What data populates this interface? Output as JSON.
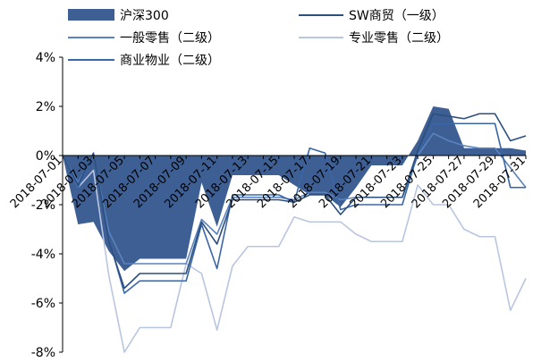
{
  "chart_data": {
    "type": "line",
    "title": "",
    "xlabel": "",
    "ylabel": "",
    "ylim": [
      -8,
      4
    ],
    "yticks": [
      4,
      2,
      0,
      -2,
      -4,
      -6,
      -8
    ],
    "ytick_labels": [
      "4%",
      "2%",
      "0%",
      "-2%",
      "-4%",
      "-6%",
      "-8%"
    ],
    "grid": false,
    "legend_position": "top",
    "x": [
      "2018-07-01",
      "2018-07-02",
      "2018-07-03",
      "2018-07-04",
      "2018-07-05",
      "2018-07-06",
      "2018-07-07",
      "2018-07-08",
      "2018-07-09",
      "2018-07-10",
      "2018-07-11",
      "2018-07-12",
      "2018-07-13",
      "2018-07-14",
      "2018-07-15",
      "2018-07-16",
      "2018-07-17",
      "2018-07-18",
      "2018-07-19",
      "2018-07-20",
      "2018-07-21",
      "2018-07-22",
      "2018-07-23",
      "2018-07-24",
      "2018-07-25",
      "2018-07-26",
      "2018-07-27",
      "2018-07-28",
      "2018-07-29",
      "2018-07-30",
      "2018-07-31"
    ],
    "xtick_labels": [
      "2018-07-01",
      "2018-07-03",
      "2018-07-05",
      "2018-07-07",
      "2018-07-09",
      "2018-07-11",
      "2018-07-13",
      "2018-07-15",
      "2018-07-17",
      "2018-07-19",
      "2018-07-21",
      "2018-07-23",
      "2018-07-25",
      "2018-07-27",
      "2018-07-29",
      "2018-07-31"
    ],
    "series": [
      {
        "name": "沪深300",
        "kind": "area",
        "color": "#3d5f94",
        "values": [
          0,
          -2.8,
          -2.7,
          -3.9,
          -4.7,
          -4.2,
          -4.2,
          -4.2,
          -4.2,
          -1.1,
          -2.9,
          -0.8,
          -0.8,
          -0.8,
          -0.8,
          -1.2,
          -1.6,
          -1.6,
          -2.1,
          -1.3,
          -0.4,
          -0.4,
          -0.4,
          0.6,
          2.0,
          1.9,
          0.3,
          0.3,
          0.3,
          0.3,
          0.2
        ]
      },
      {
        "name": "SW商贸（一级）",
        "kind": "line",
        "color": "#2b4f7e",
        "values": [
          0,
          -1.2,
          0.1,
          -3.5,
          -5.4,
          -4.8,
          -4.8,
          -4.8,
          -4.8,
          -2.7,
          -3.6,
          -1.8,
          -1.8,
          -1.8,
          -1.8,
          -1.9,
          -1.6,
          -1.6,
          -2.4,
          -1.7,
          -1.7,
          -1.7,
          -1.7,
          0.2,
          1.7,
          1.6,
          1.5,
          1.7,
          1.7,
          0.6,
          0.8
        ]
      },
      {
        "name": "一般零售（二级）",
        "kind": "line",
        "color": "#5a82bd",
        "values": [
          0,
          -1.1,
          0.0,
          -3.1,
          -4.4,
          -4.4,
          -4.4,
          -4.4,
          -4.4,
          -2.6,
          -3.2,
          -1.7,
          -1.7,
          -1.7,
          -1.7,
          -1.8,
          -1.5,
          -1.5,
          -1.8,
          -1.7,
          -1.7,
          -1.7,
          -1.7,
          0.0,
          0.9,
          0.6,
          0.4,
          0.3,
          0.3,
          -0.5,
          -1.3
        ]
      },
      {
        "name": "专业零售（二级）",
        "kind": "line",
        "color": "#b9c6e0",
        "values": [
          0,
          -1.3,
          -0.6,
          -4.9,
          -8.0,
          -7.0,
          -7.0,
          -7.0,
          -4.4,
          -4.8,
          -7.1,
          -4.5,
          -3.7,
          -3.7,
          -3.7,
          -2.5,
          -2.7,
          -2.7,
          -2.7,
          -3.2,
          -3.5,
          -3.5,
          -3.5,
          -1.2,
          -2.0,
          -2.0,
          -3.0,
          -3.3,
          -3.3,
          -6.3,
          -5.0
        ]
      },
      {
        "name": "商业物业（二级）",
        "kind": "line",
        "color": "#3a66a8",
        "values": [
          0,
          -1.3,
          0.0,
          -3.4,
          -5.6,
          -5.1,
          -5.1,
          -5.1,
          -5.1,
          -2.8,
          -4.6,
          -1.6,
          -1.6,
          -1.6,
          -1.6,
          -1.9,
          0.3,
          0.1,
          -2.2,
          -2.0,
          -2.0,
          -2.0,
          -2.0,
          0.1,
          1.3,
          1.3,
          1.3,
          1.3,
          1.3,
          -1.3,
          -1.3
        ]
      }
    ]
  }
}
